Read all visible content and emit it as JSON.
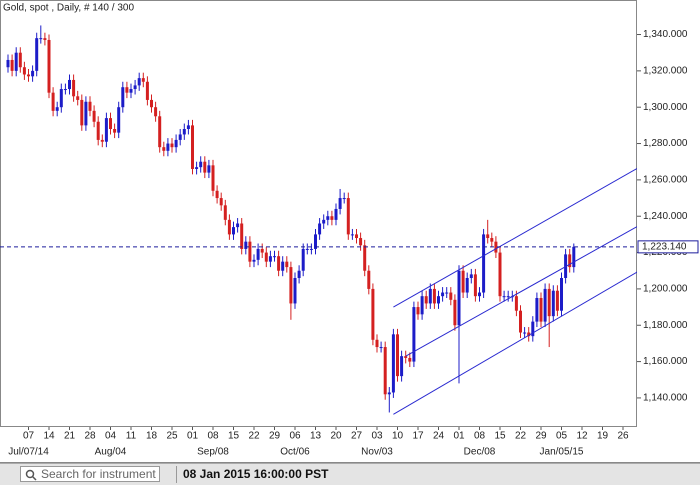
{
  "chart_data": {
    "type": "candlestick",
    "title": "Gold, spot , Daily, # 140 / 300",
    "categories": [
      null,
      null,
      null,
      null,
      null,
      "07",
      null,
      null,
      null,
      null,
      "14",
      null,
      null,
      null,
      null,
      "21",
      null,
      null,
      null,
      null,
      "28",
      null,
      null,
      null,
      null,
      "04",
      null,
      null,
      null,
      null,
      "11",
      null,
      null,
      null,
      null,
      "18",
      null,
      null,
      null,
      null,
      "25",
      null,
      null,
      null,
      null,
      "01",
      null,
      null,
      null,
      null,
      "08",
      null,
      null,
      null,
      null,
      "15",
      null,
      null,
      null,
      null,
      "22",
      null,
      null,
      null,
      null,
      "29",
      null,
      null,
      null,
      null,
      "06",
      null,
      null,
      null,
      null,
      "13",
      null,
      null,
      null,
      null,
      "20",
      null,
      null,
      null,
      null,
      "27",
      null,
      null,
      null,
      null,
      "03",
      null,
      null,
      null,
      null,
      "10",
      null,
      null,
      null,
      null,
      "17",
      null,
      null,
      null,
      null,
      "24",
      null,
      null,
      null,
      null,
      "01",
      null,
      null,
      null,
      null,
      "08",
      null,
      null,
      null,
      null,
      "15",
      null,
      null,
      null,
      null,
      "22",
      null,
      null,
      null,
      null,
      "29",
      null,
      null,
      null,
      null,
      "05",
      null,
      null,
      null,
      null,
      "12",
      null,
      null,
      null,
      null,
      "19",
      null,
      null,
      null,
      null,
      "26",
      null,
      null,
      null,
      null
    ],
    "period_labels": [
      {
        "at": 5,
        "label": "Jul/07/14"
      },
      {
        "at": 25,
        "label": "Aug/04"
      },
      {
        "at": 50,
        "label": "Sep/08"
      },
      {
        "at": 70,
        "label": "Oct/06"
      },
      {
        "at": 90,
        "label": "Nov/03"
      },
      {
        "at": 115,
        "label": "Dec/08"
      },
      {
        "at": 135,
        "label": "Jan/05/15"
      }
    ],
    "open": [
      1322,
      1326,
      1320,
      1330,
      1322,
      1318,
      1317,
      1320,
      1338,
      1338,
      1337,
      1308,
      1298,
      1300,
      1310,
      1310,
      1315,
      1306,
      1304,
      1290,
      1303,
      1298,
      1292,
      1282,
      1281,
      1294,
      1288,
      1286,
      1300,
      1311,
      1308,
      1310,
      1312,
      1316,
      1314,
      1304,
      1300,
      1295,
      1278,
      1276,
      1280,
      1278,
      1282,
      1285,
      1288,
      1290,
      1266,
      1267,
      1270,
      1264,
      1268,
      1254,
      1250,
      1246,
      1238,
      1230,
      1234,
      1236,
      1222,
      1226,
      1215,
      1216,
      1222,
      1220,
      1215,
      1218,
      1218,
      1210,
      1215,
      1212,
      1192,
      1206,
      1210,
      1222,
      1222,
      1222,
      1230,
      1236,
      1238,
      1240,
      1238,
      1244,
      1250,
      1250,
      1230,
      1230,
      1228,
      1224,
      1210,
      1200,
      1172,
      1168,
      1168,
      1142,
      1143,
      1175,
      1152,
      1163,
      1162,
      1160,
      1190,
      1186,
      1196,
      1192,
      1200,
      1192,
      1196,
      1198,
      1198,
      1194,
      1180,
      1210,
      1198,
      1206,
      1208,
      1196,
      1198,
      1230,
      1228,
      1226,
      1220,
      1196,
      1196,
      1196,
      1196,
      1188,
      1176,
      1176,
      1174,
      1182,
      1195,
      1182,
      1200,
      1185,
      1199,
      1188,
      1206,
      1219,
      1212,
      null,
      null,
      null,
      null,
      null,
      null,
      null,
      null,
      null,
      null,
      null,
      null,
      null,
      null,
      null,
      null
    ],
    "high": [
      1329,
      1329,
      1333,
      1333,
      1325,
      1321,
      1323,
      1341,
      1345,
      1341,
      1340,
      1311,
      1303,
      1313,
      1313,
      1318,
      1318,
      1309,
      1307,
      1306,
      1306,
      1301,
      1295,
      1285,
      1297,
      1297,
      1291,
      1303,
      1314,
      1314,
      1313,
      1315,
      1319,
      1319,
      1317,
      1307,
      1303,
      1298,
      1281,
      1283,
      1283,
      1285,
      1288,
      1291,
      1293,
      1293,
      1270,
      1273,
      1273,
      1271,
      1271,
      1257,
      1253,
      1249,
      1241,
      1237,
      1239,
      1239,
      1229,
      1229,
      1219,
      1225,
      1225,
      1223,
      1221,
      1221,
      1221,
      1218,
      1218,
      1215,
      1209,
      1213,
      1225,
      1225,
      1225,
      1233,
      1239,
      1241,
      1243,
      1243,
      1247,
      1255,
      1253,
      1253,
      1233,
      1233,
      1231,
      1227,
      1213,
      1203,
      1175,
      1171,
      1171,
      1146,
      1178,
      1178,
      1166,
      1166,
      1165,
      1193,
      1193,
      1199,
      1199,
      1203,
      1203,
      1199,
      1201,
      1201,
      1201,
      1197,
      1213,
      1213,
      1209,
      1211,
      1211,
      1201,
      1233,
      1238,
      1231,
      1229,
      1223,
      1199,
      1199,
      1199,
      1199,
      1191,
      1179,
      1179,
      1185,
      1198,
      1198,
      1203,
      1203,
      1202,
      1202,
      1209,
      1222,
      1222,
      1225,
      null,
      null,
      null,
      null,
      null,
      null,
      null,
      null,
      null,
      null,
      null,
      null,
      null,
      null,
      null,
      null
    ],
    "low": [
      1319,
      1317,
      1317,
      1319,
      1315,
      1314,
      1314,
      1317,
      1335,
      1334,
      1305,
      1295,
      1295,
      1297,
      1307,
      1307,
      1303,
      1301,
      1287,
      1287,
      1295,
      1289,
      1279,
      1278,
      1278,
      1285,
      1283,
      1283,
      1297,
      1305,
      1305,
      1307,
      1309,
      1311,
      1301,
      1297,
      1292,
      1275,
      1273,
      1273,
      1275,
      1275,
      1279,
      1282,
      1285,
      1263,
      1263,
      1264,
      1261,
      1261,
      1251,
      1247,
      1243,
      1235,
      1227,
      1227,
      1231,
      1219,
      1219,
      1212,
      1212,
      1213,
      1217,
      1212,
      1212,
      1215,
      1207,
      1207,
      1209,
      1183,
      1189,
      1203,
      1207,
      1219,
      1219,
      1219,
      1227,
      1233,
      1235,
      1235,
      1235,
      1241,
      1247,
      1227,
      1227,
      1225,
      1221,
      1207,
      1197,
      1169,
      1165,
      1165,
      1139,
      1132,
      1140,
      1149,
      1149,
      1159,
      1157,
      1157,
      1183,
      1183,
      1189,
      1189,
      1189,
      1189,
      1193,
      1195,
      1191,
      1177,
      1148,
      1195,
      1195,
      1203,
      1193,
      1193,
      1195,
      1225,
      1223,
      1217,
      1193,
      1193,
      1193,
      1193,
      1185,
      1173,
      1173,
      1171,
      1171,
      1179,
      1179,
      1179,
      1168,
      1182,
      1185,
      1185,
      1203,
      1209,
      1209,
      null,
      null,
      null,
      null,
      null,
      null,
      null,
      null,
      null,
      null,
      null,
      null,
      null,
      null,
      null,
      null
    ],
    "close": [
      1326,
      1320,
      1330,
      1322,
      1318,
      1317,
      1320,
      1338,
      1338,
      1337,
      1308,
      1298,
      1300,
      1310,
      1310,
      1315,
      1306,
      1304,
      1290,
      1303,
      1298,
      1292,
      1282,
      1281,
      1294,
      1288,
      1286,
      1300,
      1311,
      1308,
      1310,
      1312,
      1316,
      1314,
      1304,
      1300,
      1295,
      1278,
      1276,
      1280,
      1278,
      1282,
      1285,
      1288,
      1290,
      1266,
      1267,
      1270,
      1264,
      1268,
      1254,
      1250,
      1246,
      1238,
      1230,
      1234,
      1236,
      1222,
      1226,
      1215,
      1216,
      1222,
      1220,
      1215,
      1218,
      1218,
      1210,
      1215,
      1212,
      1192,
      1206,
      1210,
      1222,
      1222,
      1222,
      1230,
      1236,
      1238,
      1240,
      1238,
      1244,
      1250,
      1250,
      1230,
      1230,
      1228,
      1224,
      1210,
      1200,
      1172,
      1168,
      1168,
      1142,
      1143,
      1175,
      1152,
      1163,
      1162,
      1160,
      1190,
      1186,
      1196,
      1192,
      1200,
      1192,
      1196,
      1198,
      1198,
      1194,
      1180,
      1210,
      1198,
      1206,
      1208,
      1196,
      1198,
      1230,
      1228,
      1226,
      1220,
      1196,
      1196,
      1196,
      1196,
      1188,
      1176,
      1176,
      1174,
      1182,
      1195,
      1182,
      1200,
      1185,
      1199,
      1188,
      1206,
      1219,
      1212,
      1223.14,
      null,
      null,
      null,
      null,
      null,
      null,
      null,
      null,
      null,
      null,
      null,
      null,
      null,
      null,
      null,
      null
    ],
    "up_color": "#1c1cc8",
    "down_color": "#d42020",
    "ylim": [
      1124,
      1359
    ],
    "yticks": [
      {
        "value": 1140,
        "label": "1,140.000"
      },
      {
        "value": 1160,
        "label": "1,160.000"
      },
      {
        "value": 1180,
        "label": "1,180.000"
      },
      {
        "value": 1200,
        "label": "1,200.000"
      },
      {
        "value": 1220,
        "label": "1,220.000"
      },
      {
        "value": 1240,
        "label": "1,240.000"
      },
      {
        "value": 1260,
        "label": "1,260.000"
      },
      {
        "value": 1280,
        "label": "1,280.000"
      },
      {
        "value": 1300,
        "label": "1,300.000"
      },
      {
        "value": 1320,
        "label": "1,320.000"
      },
      {
        "value": 1340,
        "label": "1,340.000"
      }
    ],
    "last_price": {
      "value": 1223.14,
      "label": "1,223.140"
    },
    "last_price_color": "#1c1c9c",
    "trend_lines": [
      {
        "start": [
          94,
          1190
        ],
        "end": [
          154,
          1267
        ]
      },
      {
        "start": [
          97,
          1163
        ],
        "end": [
          154,
          1235
        ]
      },
      {
        "start": [
          94,
          1131
        ],
        "end": [
          154,
          1210
        ]
      }
    ],
    "trend_color": "#2a2ad0"
  },
  "toolbar": {
    "search_placeholder": "Search for instrument",
    "timestamp": "08 Jan 2015 16:00:00 PST"
  }
}
